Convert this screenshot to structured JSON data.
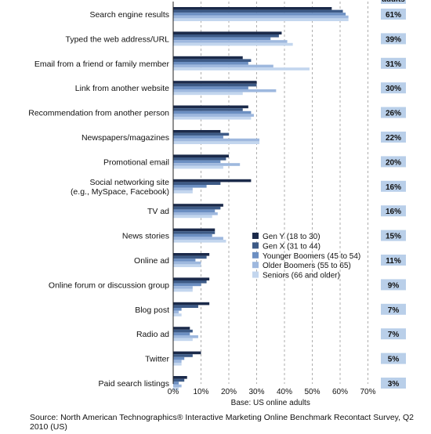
{
  "chart_data": {
    "type": "bar",
    "orientation": "horizontal",
    "categories": [
      "Search engine results",
      "Typed the web address/URL",
      "Email from a friend or family member",
      "Link from another website",
      "Recommendation from another person",
      "Newspapers/magazines",
      "Promotional email",
      "Social networking site\n(e.g., MySpace, Facebook)",
      "TV ad",
      "News stories",
      "Online ad",
      "Online forum or discussion group",
      "Blog post",
      "Radio ad",
      "Twitter",
      "Paid search listings"
    ],
    "series": [
      {
        "name": "Gen Y (18 to 30)",
        "color": "#1b2a4a",
        "values": [
          57,
          39,
          25,
          30,
          27,
          17,
          20,
          28,
          18,
          15,
          13,
          13,
          13,
          6,
          10,
          5
        ]
      },
      {
        "name": "Gen X (31 to 44)",
        "color": "#3d5a86",
        "values": [
          61,
          38,
          28,
          30,
          25,
          20,
          19,
          17,
          17,
          15,
          12,
          12,
          9,
          7,
          7,
          4
        ]
      },
      {
        "name": "Younger Boomers (45 to 54)",
        "color": "#6c8fc2",
        "values": [
          62,
          35,
          27,
          27,
          28,
          18,
          17,
          12,
          15,
          14,
          8,
          10,
          3,
          6,
          4,
          2
        ]
      },
      {
        "name": "Older Boomers (55 to 65)",
        "color": "#9eb8de",
        "values": [
          63,
          41,
          36,
          37,
          29,
          31,
          24,
          7,
          16,
          18,
          10,
          7,
          2,
          9,
          3,
          3
        ]
      },
      {
        "name": "Seniors (66 and older)",
        "color": "#c3d6ee",
        "values": [
          63,
          43,
          49,
          25,
          28,
          31,
          18,
          7,
          14,
          19,
          10,
          7,
          3,
          7,
          3,
          2
        ]
      }
    ],
    "totals_header": "adults",
    "totals": [
      "61%",
      "39%",
      "31%",
      "30%",
      "26%",
      "22%",
      "20%",
      "16%",
      "16%",
      "15%",
      "11%",
      "9%",
      "7%",
      "7%",
      "5%",
      "3%"
    ],
    "xlim": [
      0,
      70
    ],
    "xticks": [
      "0%",
      "10%",
      "20%",
      "30%",
      "40%",
      "50%",
      "60%",
      "70%"
    ],
    "xlabel": "Base: US online adults",
    "grid": "vertical dashed",
    "legend_position": "right, middle"
  },
  "colors": {
    "totals_box": "#b9cfe9",
    "grid": "#9a9a9a"
  },
  "source": "Source: North American Technographics® Interactive Marketing Online Benchmark Recontact Survey, Q2 2010 (US)"
}
